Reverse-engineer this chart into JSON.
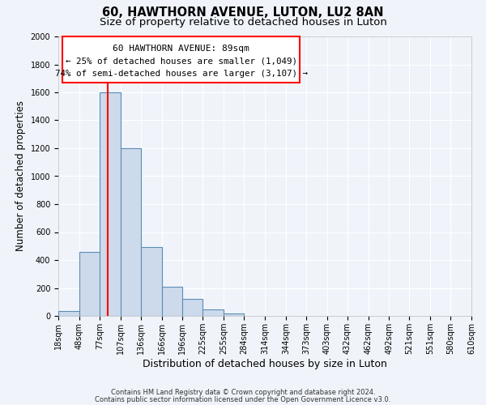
{
  "title": "60, HAWTHORN AVENUE, LUTON, LU2 8AN",
  "subtitle": "Size of property relative to detached houses in Luton",
  "xlabel": "Distribution of detached houses by size in Luton",
  "ylabel": "Number of detached properties",
  "bar_values": [
    35,
    460,
    1600,
    1200,
    490,
    210,
    120,
    45,
    20
  ],
  "bin_edges": [
    18,
    48,
    77,
    107,
    136,
    166,
    196,
    225,
    255,
    284
  ],
  "all_tick_labels": [
    "18sqm",
    "48sqm",
    "77sqm",
    "107sqm",
    "136sqm",
    "166sqm",
    "196sqm",
    "225sqm",
    "255sqm",
    "284sqm",
    "314sqm",
    "344sqm",
    "373sqm",
    "403sqm",
    "432sqm",
    "462sqm",
    "492sqm",
    "521sqm",
    "551sqm",
    "580sqm",
    "610sqm"
  ],
  "tick_positions": [
    18,
    48,
    77,
    107,
    136,
    166,
    196,
    225,
    255,
    284,
    314,
    344,
    373,
    403,
    432,
    462,
    492,
    521,
    551,
    580,
    610
  ],
  "bar_color": "#ccdaeb",
  "bar_edge_color": "#5b8db8",
  "red_line_x": 89,
  "xlim": [
    18,
    610
  ],
  "ylim": [
    0,
    2000
  ],
  "yticks": [
    0,
    200,
    400,
    600,
    800,
    1000,
    1200,
    1400,
    1600,
    1800,
    2000
  ],
  "annotation_title": "60 HAWTHORN AVENUE: 89sqm",
  "annotation_line1": "← 25% of detached houses are smaller (1,049)",
  "annotation_line2": "74% of semi-detached houses are larger (3,107) →",
  "footer1": "Contains HM Land Registry data © Crown copyright and database right 2024.",
  "footer2": "Contains public sector information licensed under the Open Government Licence v3.0.",
  "background_color": "#f0f4fa",
  "grid_color": "#ffffff",
  "title_fontsize": 10.5,
  "subtitle_fontsize": 9.5,
  "tick_fontsize": 7,
  "ylabel_fontsize": 8.5,
  "xlabel_fontsize": 9
}
